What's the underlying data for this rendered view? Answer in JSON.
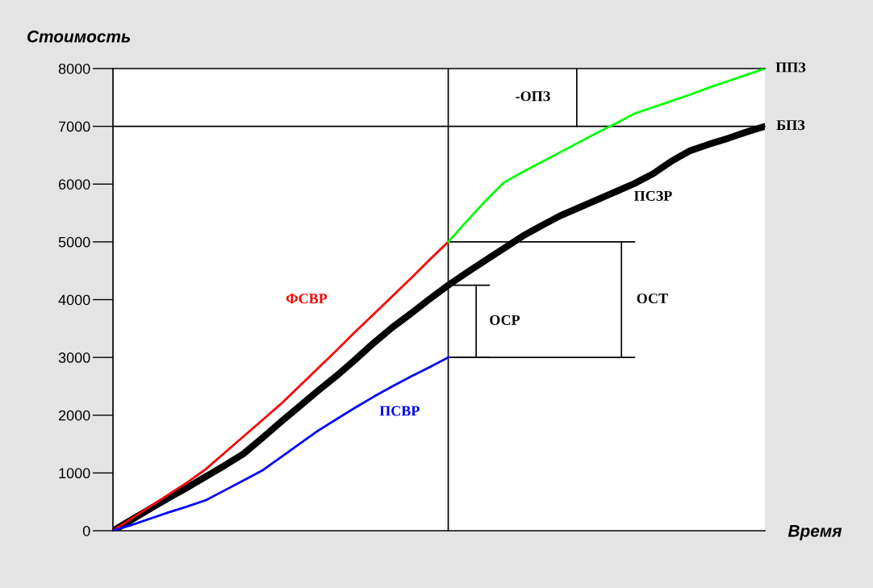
{
  "chart_data": {
    "type": "line",
    "xlabel": "Время",
    "ylabel": "Стоимость",
    "categories": [
      null,
      null,
      null,
      null,
      null,
      null,
      null,
      null,
      null,
      null,
      null,
      null,
      null,
      null,
      null,
      null,
      null,
      null,
      null,
      null,
      null,
      null,
      null,
      null,
      null,
      null,
      null,
      null,
      null,
      null,
      null,
      null,
      null,
      null,
      null,
      null
    ],
    "series": [
      {
        "name": "ФСВР",
        "color": "#ff0000",
        "values": [
          0,
          210,
          420,
          630,
          840,
          1070,
          1350,
          1630,
          1910,
          2190,
          2500,
          2810,
          3120,
          3440,
          3750,
          4060,
          4370,
          4690,
          5000,
          null,
          null,
          null,
          null,
          null,
          null,
          null,
          null,
          null,
          null,
          null,
          null,
          null,
          null,
          null,
          null,
          null
        ]
      },
      {
        "name": "ПСВР",
        "color": "#0000ff",
        "values": [
          0,
          100,
          210,
          320,
          420,
          530,
          700,
          870,
          1040,
          1270,
          1500,
          1730,
          1930,
          2130,
          2320,
          2500,
          2670,
          2830,
          3000,
          null,
          null,
          null,
          null,
          null,
          null,
          null,
          null,
          null,
          null,
          null,
          null,
          null,
          null,
          null,
          null,
          null
        ]
      },
      {
        "name": "ПСЗР",
        "color": "#000000",
        "values": [
          0,
          190,
          380,
          570,
          750,
          940,
          1130,
          1330,
          1600,
          1880,
          2150,
          2420,
          2680,
          2960,
          3250,
          3520,
          3760,
          4010,
          4250,
          4470,
          4680,
          4890,
          5100,
          5280,
          5450,
          5590,
          5730,
          5870,
          6010,
          6180,
          6400,
          6580,
          6690,
          6790,
          6900,
          7000
        ]
      },
      {
        "color": "#00ff00",
        "values": [
          null,
          null,
          null,
          null,
          null,
          null,
          null,
          null,
          null,
          null,
          null,
          null,
          null,
          null,
          null,
          null,
          null,
          null,
          5000,
          5360,
          5710,
          6030,
          6210,
          6380,
          6550,
          6720,
          6890,
          7050,
          7220,
          7330,
          7440,
          7550,
          7670,
          7780,
          7890,
          8000
        ]
      }
    ],
    "ylim": [
      0,
      8000
    ],
    "yticks": [
      0,
      1000,
      2000,
      3000,
      4000,
      5000,
      6000,
      7000,
      8000
    ],
    "ref_lines": [
      {
        "axis": "y",
        "value": 7000,
        "label": "БПЗ",
        "color": "#000000"
      }
    ],
    "annotations": [
      "ОСР",
      "ОСТ",
      "-ОПЗ",
      "ППЗ"
    ],
    "grid": false,
    "legend": false
  }
}
